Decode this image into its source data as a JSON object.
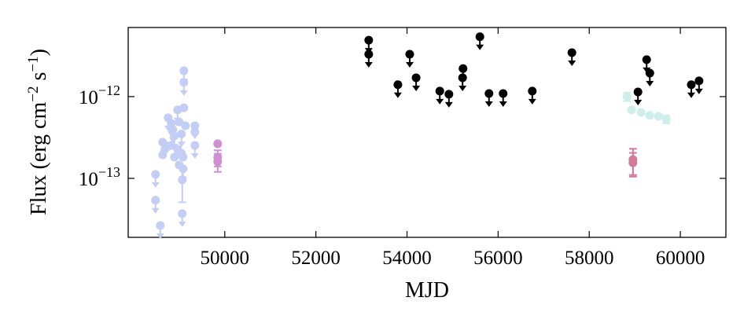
{
  "chart_data": {
    "type": "scatter",
    "x_label": "MJD",
    "y_label": [
      "Flux (erg cm",
      "−2",
      " s",
      "−1",
      ")"
    ],
    "log_y": true,
    "xlim": [
      47880,
      61000
    ],
    "ylim": [
      1.9e-14,
      7e-12
    ],
    "xticks": [
      50000,
      52000,
      54000,
      56000,
      58000,
      60000
    ],
    "yticks": [
      {
        "value": 1e-13,
        "label": "10",
        "exponent": "−13"
      },
      {
        "value": 1e-12,
        "label": "10",
        "exponent": "−12"
      }
    ],
    "series": [
      {
        "color": "#c4cdf4",
        "x": [
          48480,
          48480,
          48584,
          48636,
          48636,
          48687,
          48757,
          48757,
          48826,
          48826,
          48860,
          48895,
          48895,
          48964,
          48964,
          48998,
          48998,
          49050,
          49050,
          49067,
          49067,
          49085,
          49085,
          49102,
          49102,
          49102,
          49136,
          49344,
          49344,
          49344
        ],
        "values": [
          1.12e-13,
          5.4e-14,
          2.65e-14,
          2.77e-13,
          1.94e-13,
          2.27e-13,
          5.5e-13,
          2.48e-13,
          4.7e-13,
          2.53e-13,
          3.95e-13,
          3.3e-13,
          1.82e-13,
          6.9e-13,
          2.27e-13,
          4.9e-13,
          1.46e-13,
          3.5e-13,
          2.03e-13,
          9.6e-14,
          3.7e-14,
          1.82e-13,
          1.31e-13,
          2.07e-12,
          1.49e-12,
          7.3e-13,
          4.4e-13,
          4.4e-13,
          3.7e-13,
          2.53e-13
        ],
        "upper_limits": [
          true,
          true,
          true,
          false,
          false,
          false,
          true,
          false,
          true,
          false,
          true,
          true,
          false,
          true,
          false,
          false,
          false,
          true,
          false,
          false,
          true,
          false,
          true,
          true,
          true,
          false,
          false,
          true,
          false,
          true
        ],
        "errors": [
          null,
          null,
          null,
          null,
          null,
          null,
          null,
          null,
          null,
          null,
          null,
          null,
          null,
          null,
          null,
          null,
          null,
          null,
          null,
          4.5e-14,
          null,
          null,
          null,
          null,
          null,
          null,
          null,
          null,
          null,
          null
        ]
      },
      {
        "color": "#d08fd0",
        "x": [
          49845,
          49845,
          49845
        ],
        "values": [
          2.65e-13,
          1.8e-13,
          1.6e-13
        ],
        "upper_limits": [
          false,
          false,
          false
        ],
        "errors": [
          null,
          4e-14,
          4e-14
        ]
      },
      {
        "color": "#000000",
        "x": [
          53160,
          53160,
          53800,
          54060,
          54200,
          54720,
          54920,
          55220,
          55230,
          55600,
          55800,
          56110,
          56750,
          57620,
          59070,
          59260,
          59330,
          60240,
          60410
        ],
        "values": [
          4.9e-12,
          3.3e-12,
          1.4e-12,
          3.3e-12,
          1.7e-12,
          1.17e-12,
          1.07e-12,
          1.7e-12,
          2.2e-12,
          5.4e-12,
          1.09e-12,
          1.09e-12,
          1.17e-12,
          3.45e-12,
          1.14e-12,
          2.83e-12,
          1.94e-12,
          1.4e-12,
          1.56e-12
        ],
        "upper_limits": [
          true,
          true,
          true,
          true,
          true,
          true,
          true,
          true,
          true,
          true,
          true,
          true,
          true,
          true,
          true,
          true,
          true,
          true,
          true
        ],
        "errors": [
          null,
          null,
          null,
          null,
          null,
          null,
          null,
          null,
          null,
          null,
          null,
          null,
          null,
          null,
          null,
          null,
          null,
          null,
          null
        ]
      },
      {
        "color": "#cdeeea",
        "x": [
          58830,
          58930,
          59140,
          59330,
          59520,
          59690
        ],
        "values": [
          1e-12,
          6.9e-13,
          6.4e-13,
          5.9e-13,
          5.75e-13,
          5.3e-13
        ],
        "upper_limits": [
          false,
          false,
          false,
          false,
          false,
          false
        ],
        "errors": [
          1.2e-13,
          null,
          null,
          null,
          null,
          6e-14
        ]
      },
      {
        "color": "#d27a98",
        "x": [
          58960,
          58960
        ],
        "values": [
          1.7e-13,
          1.55e-13
        ],
        "upper_limits": [
          false,
          false
        ],
        "errors": [
          6e-14,
          5e-14
        ]
      }
    ]
  }
}
